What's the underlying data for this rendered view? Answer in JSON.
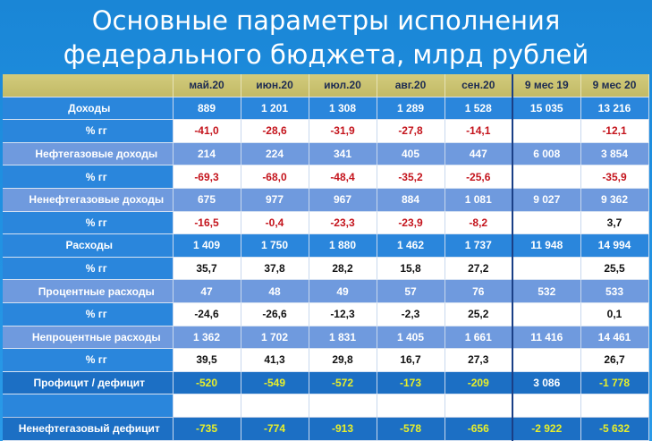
{
  "title_line1": "Основные параметры исполнения",
  "title_line2": "федерального бюджета, млрд рублей",
  "columns": [
    "май.20",
    "июн.20",
    "июл.20",
    "авг.20",
    "сен.20",
    "9 мес 19",
    "9 мес 20"
  ],
  "rows": [
    {
      "label": "Доходы",
      "values": [
        "889",
        "1 201",
        "1 308",
        "1 289",
        "1 528",
        "15 035",
        "13 216"
      ]
    },
    {
      "label": "% гг",
      "values": [
        "-41,0",
        "-28,6",
        "-31,9",
        "-27,8",
        "-14,1",
        "",
        "-12,1"
      ]
    },
    {
      "label": "Нефтегазовые доходы",
      "values": [
        "214",
        "224",
        "341",
        "405",
        "447",
        "6 008",
        "3 854"
      ]
    },
    {
      "label": "% гг",
      "values": [
        "-69,3",
        "-68,0",
        "-48,4",
        "-35,2",
        "-25,6",
        "",
        "-35,9"
      ]
    },
    {
      "label": "Ненефтегазовые доходы",
      "values": [
        "675",
        "977",
        "967",
        "884",
        "1 081",
        "9 027",
        "9 362"
      ]
    },
    {
      "label": "% гг",
      "values": [
        "-16,5",
        "-0,4",
        "-23,3",
        "-23,9",
        "-8,2",
        "",
        "3,7"
      ]
    },
    {
      "label": "Расходы",
      "values": [
        "1 409",
        "1 750",
        "1 880",
        "1 462",
        "1 737",
        "11 948",
        "14 994"
      ]
    },
    {
      "label": "% гг",
      "values": [
        "35,7",
        "37,8",
        "28,2",
        "15,8",
        "27,2",
        "",
        "25,5"
      ]
    },
    {
      "label": "Процентные расходы",
      "values": [
        "47",
        "48",
        "49",
        "57",
        "76",
        "532",
        "533"
      ]
    },
    {
      "label": "% гг",
      "values": [
        "-24,6",
        "-26,6",
        "-12,3",
        "-2,3",
        "25,2",
        "",
        "0,1"
      ]
    },
    {
      "label": "Непроцентные расходы",
      "values": [
        "1 362",
        "1 702",
        "1 831",
        "1 405",
        "1 661",
        "11 416",
        "14 461"
      ]
    },
    {
      "label": "% гг",
      "values": [
        "39,5",
        "41,3",
        "29,8",
        "16,7",
        "27,3",
        "",
        "26,7"
      ]
    },
    {
      "label": "Профицит / дефицит",
      "values": [
        "-520",
        "-549",
        "-572",
        "-173",
        "-209",
        "3 086",
        "-1 778"
      ]
    },
    {
      "label": "Ненефтегазовый дефицит",
      "values": [
        "-735",
        "-774",
        "-913",
        "-578",
        "-656",
        "-2 922",
        "-5 632"
      ]
    }
  ]
}
